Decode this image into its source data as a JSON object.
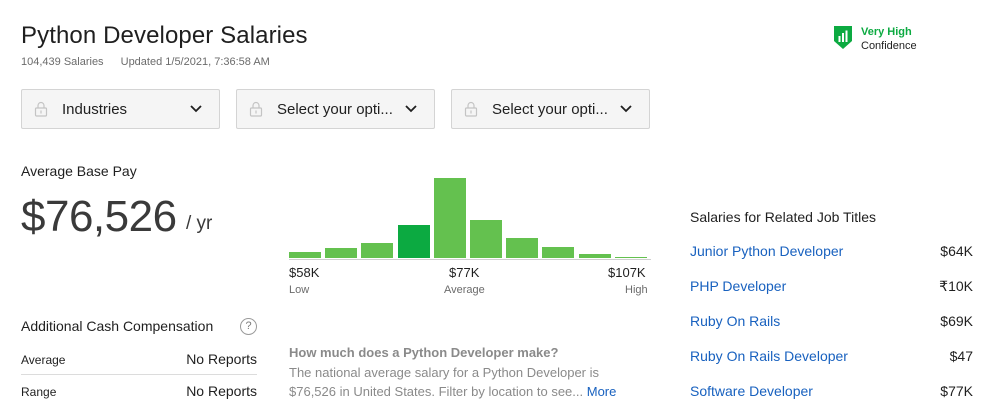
{
  "header": {
    "title": "Python Developer Salaries",
    "salaries_count": "104,439 Salaries",
    "updated": "Updated 1/5/2021, 7:36:58 AM"
  },
  "confidence": {
    "level": "Very High",
    "label": "Confidence",
    "icon": "bar-chart-shield-icon",
    "color": "#0caa41"
  },
  "filters": [
    {
      "label": "Industries",
      "icon": "lock-icon"
    },
    {
      "label": "Select your opti...",
      "icon": "lock-icon"
    },
    {
      "label": "Select your opti...",
      "icon": "lock-icon"
    }
  ],
  "pay": {
    "label": "Average Base Pay",
    "amount": "$76,526",
    "unit": "/ yr"
  },
  "histogram": {
    "bin_heights": [
      6,
      10,
      15,
      33,
      80,
      38,
      20,
      11,
      4,
      1
    ],
    "highlight_bin": 3,
    "bar_color": "#64c14f",
    "highlight_color": "#0caa41",
    "ticks": [
      {
        "value": "$58K",
        "label": "Low"
      },
      {
        "value": "$77K",
        "label": "Average"
      },
      {
        "value": "$107K",
        "label": "High"
      }
    ]
  },
  "cash": {
    "title": "Additional Cash Compensation",
    "help_icon": "question-icon",
    "rows": [
      {
        "label": "Average",
        "value": "No Reports"
      },
      {
        "label": "Range",
        "value": "No Reports"
      }
    ]
  },
  "faq": {
    "question": "How much does a Python Developer make?",
    "answer": "The national average salary for a Python Developer is $76,526 in United States. Filter by location to see...",
    "more": "More"
  },
  "related": {
    "title": "Salaries for Related Job Titles",
    "items": [
      {
        "title": "Junior Python Developer",
        "pay": "$64K"
      },
      {
        "title": "PHP Developer",
        "pay": "₹10K"
      },
      {
        "title": "Ruby On Rails",
        "pay": "$69K"
      },
      {
        "title": "Ruby On Rails Developer",
        "pay": "$47"
      },
      {
        "title": "Software Developer",
        "pay": "$77K"
      }
    ]
  }
}
